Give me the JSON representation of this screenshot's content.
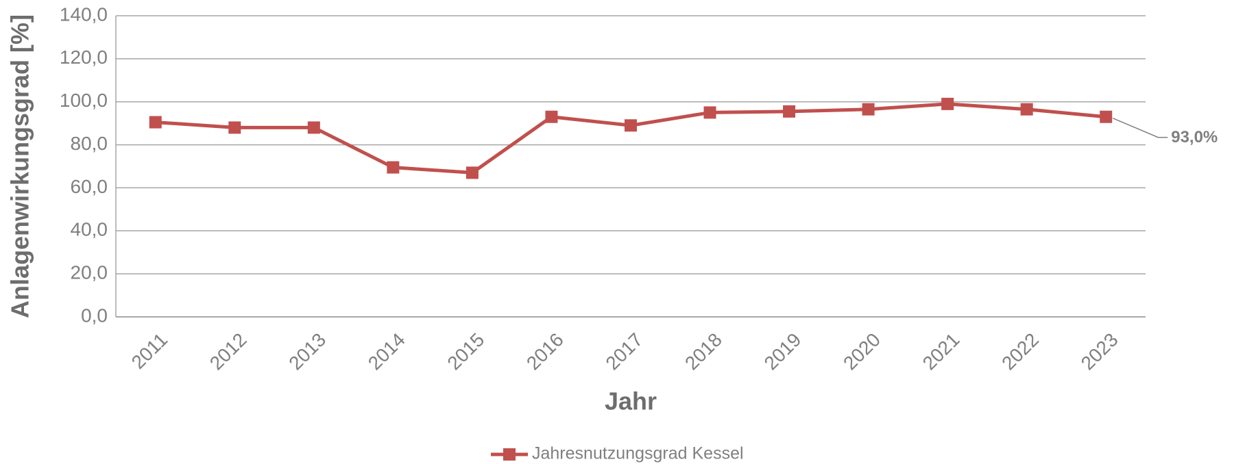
{
  "chart_data": {
    "type": "line",
    "categories": [
      "2011",
      "2012",
      "2013",
      "2014",
      "2015",
      "2016",
      "2017",
      "2018",
      "2019",
      "2020",
      "2021",
      "2022",
      "2023"
    ],
    "series": [
      {
        "name": "Jahresnutzungsgrad Kessel",
        "color": "#c0504d",
        "values": [
          90.5,
          88,
          88,
          69.5,
          67,
          93,
          89,
          95,
          95.5,
          96.5,
          99,
          96.5,
          93
        ],
        "value_labels": [
          null,
          null,
          null,
          null,
          null,
          null,
          null,
          null,
          null,
          null,
          null,
          null,
          "93,0%"
        ]
      }
    ],
    "ylabel": "Anlagenwirkungsgrad [%]",
    "xlabel": "Jahr",
    "ylim": [
      0,
      140
    ],
    "yticks": [
      {
        "value": 0,
        "label": "0,0"
      },
      {
        "value": 20,
        "label": "20,0"
      },
      {
        "value": 40,
        "label": "40,0"
      },
      {
        "value": 60,
        "label": "60,0"
      },
      {
        "value": 80,
        "label": "80,0"
      },
      {
        "value": 100,
        "label": "100,0"
      },
      {
        "value": 120,
        "label": "120,0"
      },
      {
        "value": 140,
        "label": "140,0"
      }
    ],
    "grid": true,
    "legend": "bottom"
  }
}
